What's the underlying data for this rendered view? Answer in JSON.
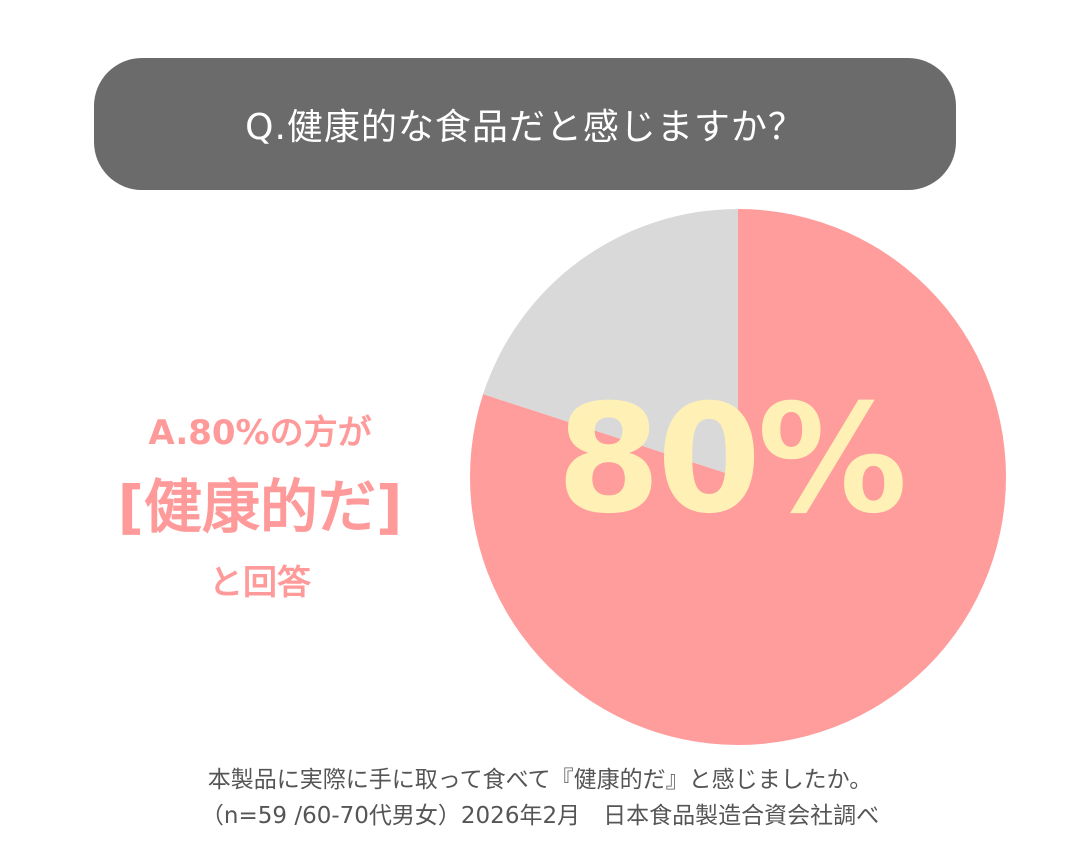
{
  "question": "Q.健康的な食品だと感じますか？",
  "chart_data": {
    "type": "pie",
    "slices": [
      {
        "value": 80,
        "color": "#ff9c9c"
      },
      {
        "value": 20,
        "color": "#d9d9d9"
      }
    ],
    "center_label": "80%"
  },
  "answer": {
    "line1": "A.80%の方が",
    "line2": "[健康的だ]",
    "line3": "と回答"
  },
  "footnote": {
    "line1": "本製品に実際に手に取って食べて『健康的だ』と感じましたか。",
    "line2": "（n=59 /60-70代男女）2026年2月　日本食品製造合資会社調べ"
  }
}
